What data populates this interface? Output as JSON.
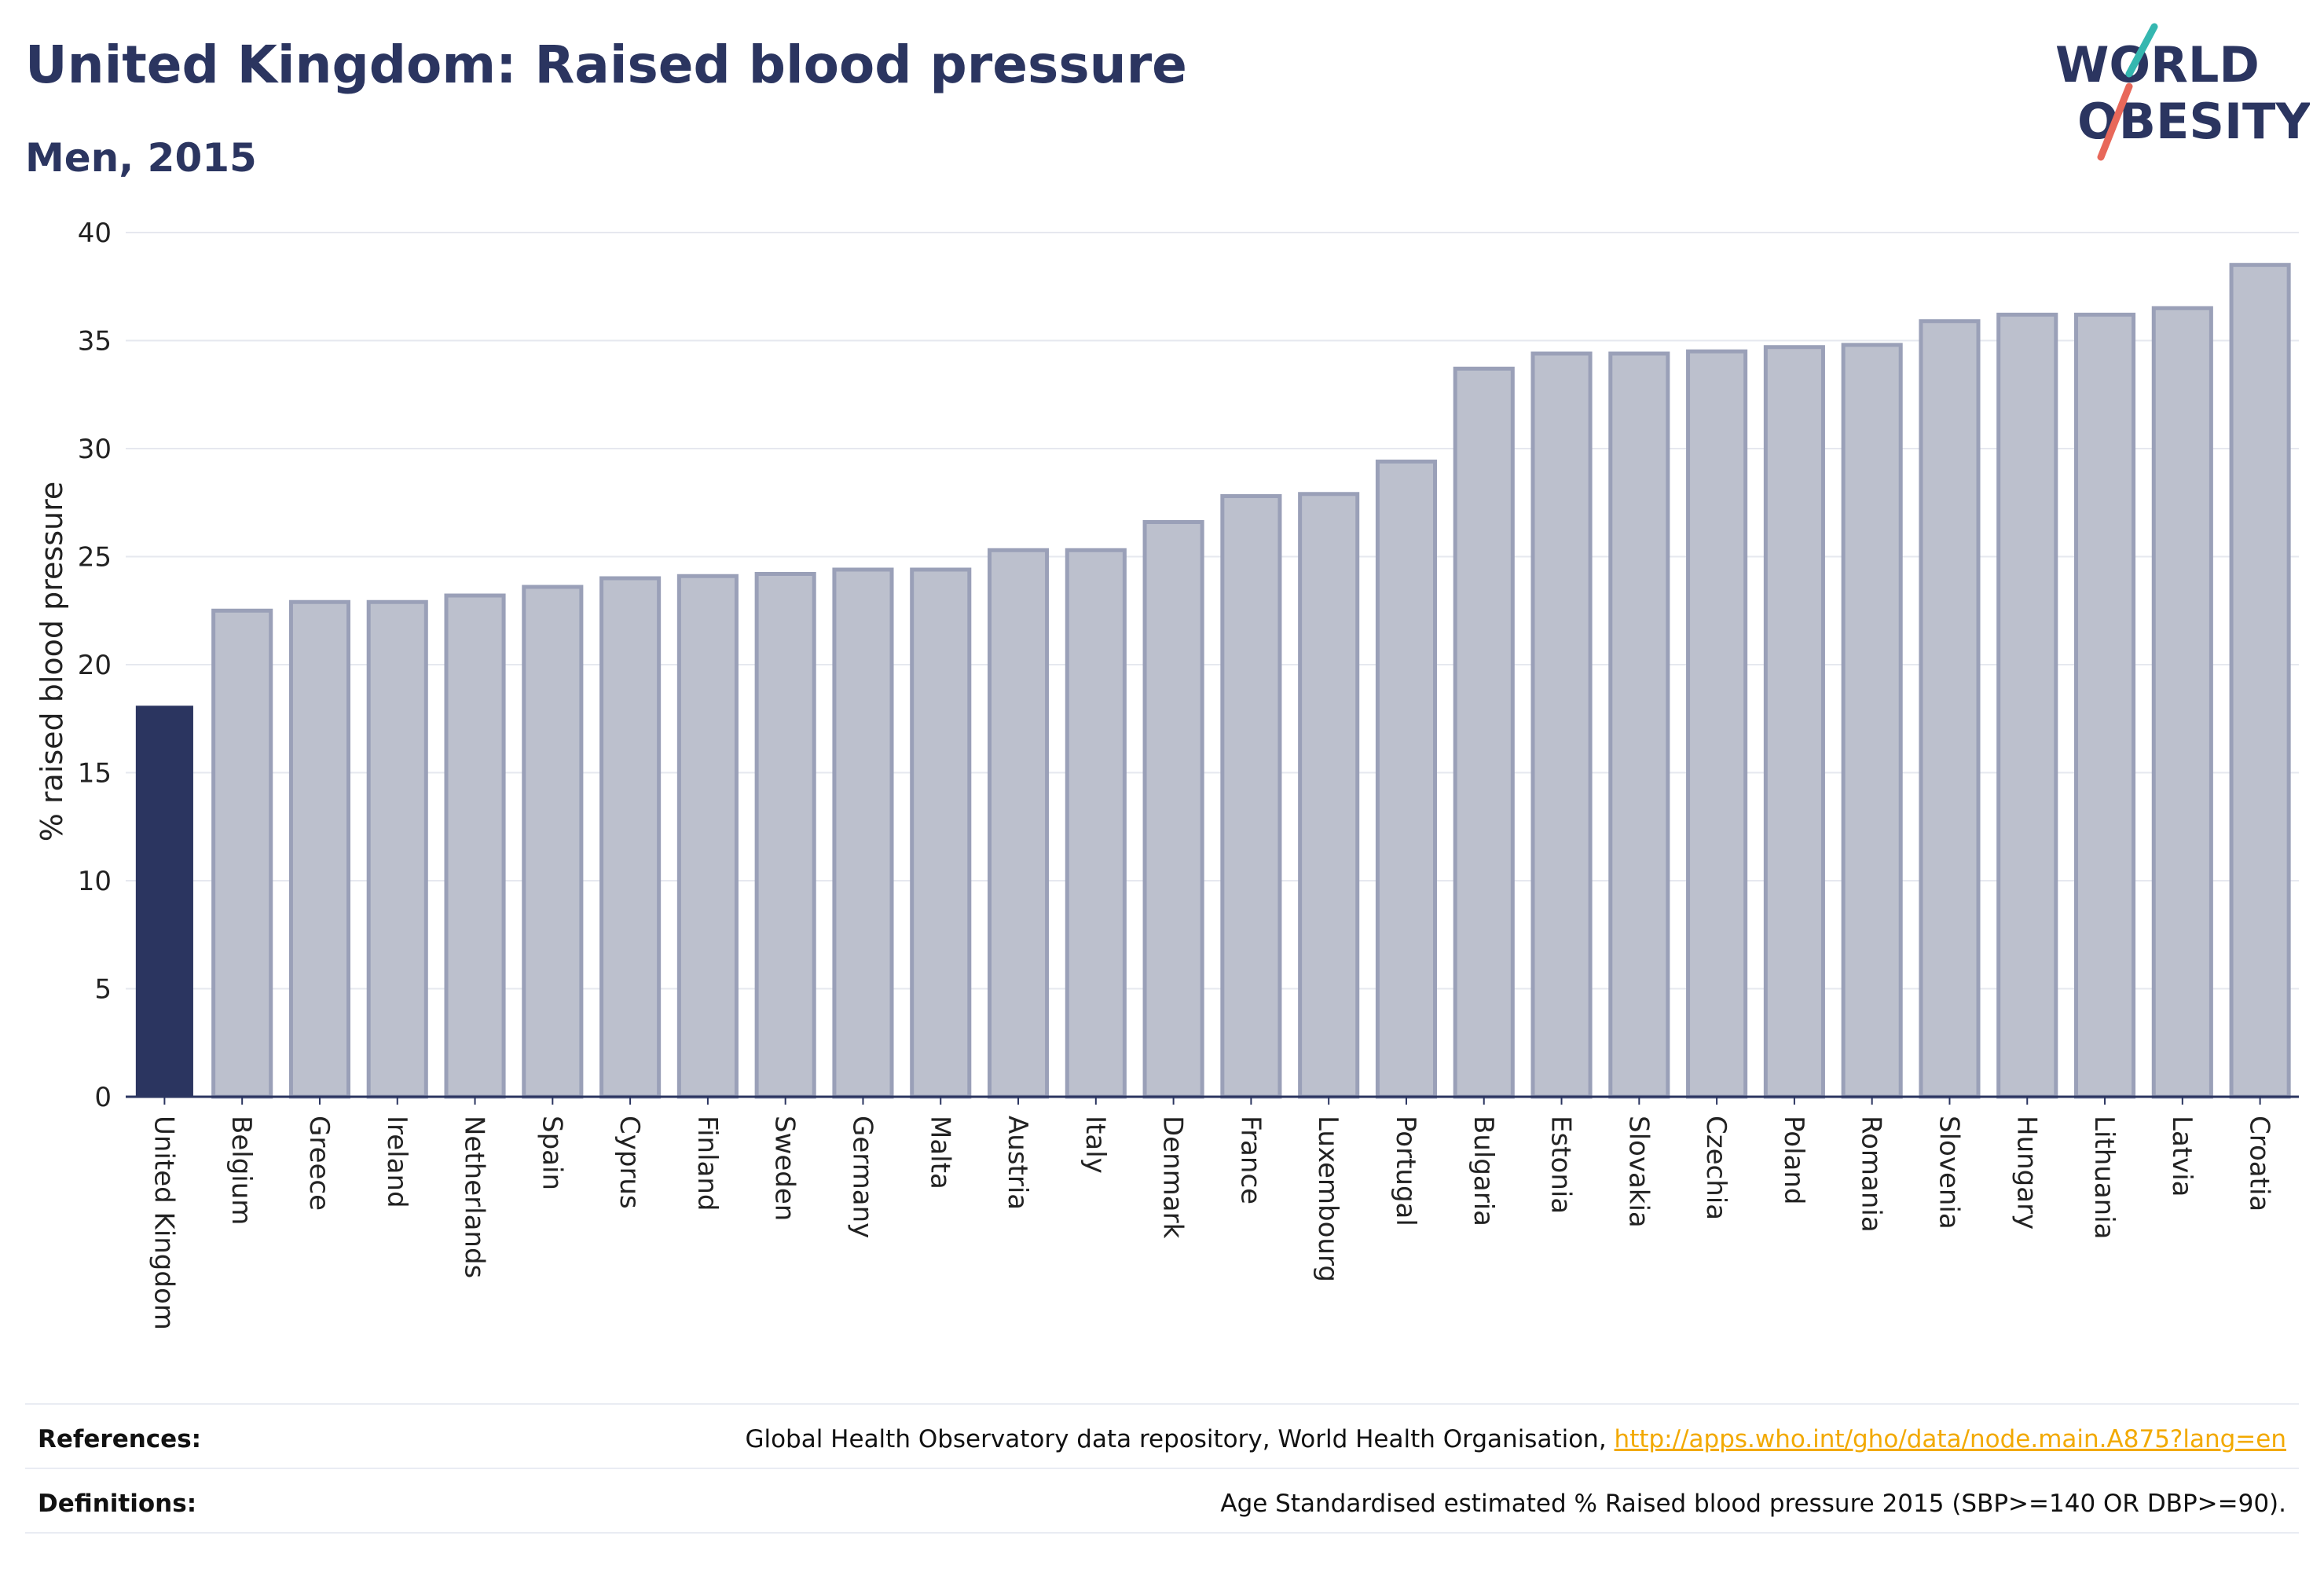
{
  "header": {
    "title": "United Kingdom: Raised blood pressure",
    "subtitle": "Men, 2015"
  },
  "logo": {
    "line1": "WORLD",
    "line2": "OBESITY"
  },
  "chart_data": {
    "type": "bar",
    "ylabel": "% raised blood pressure",
    "ylim": [
      0,
      40
    ],
    "yticks": [
      0,
      5,
      10,
      15,
      20,
      25,
      30,
      35,
      40
    ],
    "grid": true,
    "highlight_category": "United Kingdom",
    "colors": {
      "highlight": "#2b3560",
      "bar_fill": "#bcc0cd",
      "bar_stroke": "#9aa0b8"
    },
    "categories": [
      "United Kingdom",
      "Belgium",
      "Greece",
      "Ireland",
      "Netherlands",
      "Spain",
      "Cyprus",
      "Finland",
      "Sweden",
      "Germany",
      "Malta",
      "Austria",
      "Italy",
      "Denmark",
      "France",
      "Luxembourg",
      "Portugal",
      "Bulgaria",
      "Estonia",
      "Slovakia",
      "Czechia",
      "Poland",
      "Romania",
      "Slovenia",
      "Hungary",
      "Lithuania",
      "Latvia",
      "Croatia"
    ],
    "values": [
      18.1,
      22.5,
      22.9,
      22.9,
      23.2,
      23.6,
      24.0,
      24.1,
      24.2,
      24.4,
      24.4,
      25.3,
      25.3,
      26.6,
      27.8,
      27.9,
      29.4,
      33.7,
      34.4,
      34.4,
      34.5,
      34.7,
      34.8,
      35.9,
      36.2,
      36.2,
      36.5,
      38.5
    ]
  },
  "footer": {
    "references_label": "References:",
    "references_text": "Global Health Observatory data repository, World Health Organisation, ",
    "references_link": "http://apps.who.int/gho/data/node.main.A875?lang=en",
    "definitions_label": "Definitions:",
    "definitions_text": "Age Standardised estimated % Raised blood pressure 2015 (SBP>=140 OR DBP>=90)."
  }
}
